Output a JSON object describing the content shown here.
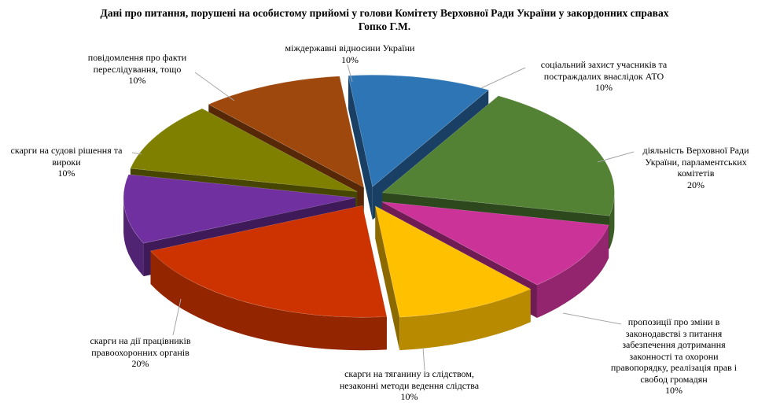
{
  "chart_data": {
    "type": "pie",
    "title_lines": [
      "Дані про питання, порушені на особистому прийомі у голови Комітету Верховної Ради України у закордонних справах",
      "Гопко Г.М."
    ],
    "slices": [
      {
        "label": "соціальний захист  учасників та постраждалих  внаслідок  АТО",
        "value": 10,
        "pct_label": "10%",
        "color": "#2E75B6"
      },
      {
        "label": "діяльність  Верховної  Ради України, парламентських комітетів",
        "value": 20,
        "pct_label": "20%",
        "color": "#548235"
      },
      {
        "label": "пропозиції про зміни в законодавстві  з питання забезпечення дотримання законності та охорони правопорядку, реалізація прав і свобод громадян",
        "value": 10,
        "pct_label": "10%",
        "color": "#CC3399"
      },
      {
        "label": "скарги на тяганину із слідством, незаконні  методи ведення слідства",
        "value": 10,
        "pct_label": "10%",
        "color": "#FFC000"
      },
      {
        "label": "скарги на дії  працівників правоохоронних  органів",
        "value": 20,
        "pct_label": "20%",
        "color": "#CC3300"
      },
      {
        "label": "скарги на судові рішення та вироки",
        "value": 10,
        "pct_label": "10%",
        "color": "#7030A0"
      },
      {
        "label": "повідомлення про факти переслідування,  тощо",
        "value": 10,
        "pct_label": "10%",
        "color": "#808000"
      },
      {
        "label": "міждержавні  відносини  України",
        "value": 10,
        "pct_label": "10%",
        "color": "#9E480E"
      }
    ],
    "legend": "none",
    "style": "3d-exploded"
  }
}
